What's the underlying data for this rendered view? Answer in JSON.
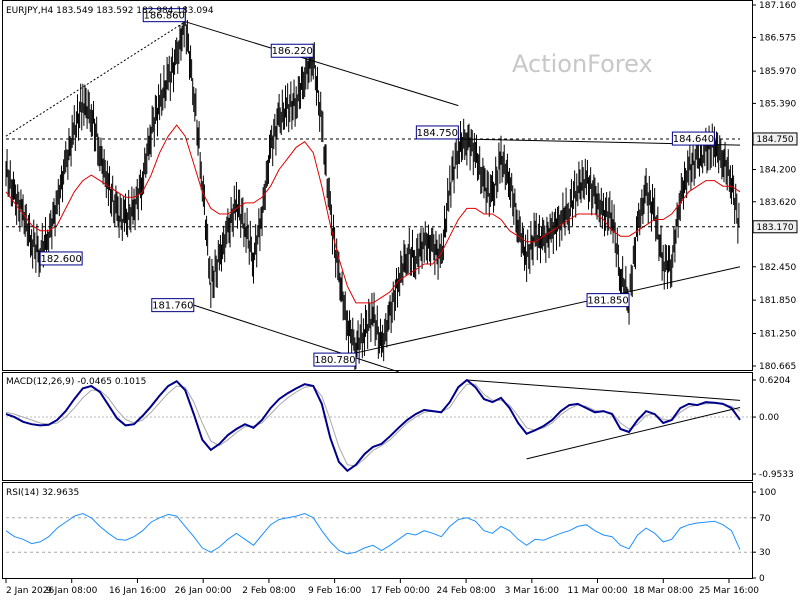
{
  "header": {
    "main": "EURJPY,H4  183.549 183.592 182.984 183.094",
    "macd": "MACD(12,26,9) -0.0465 0.1015",
    "rsi": "RSI(14) 32.9635"
  },
  "watermark": "ActionForex",
  "colors": {
    "price": "#000000",
    "ma": "#e00000",
    "macd_line": "#00008b",
    "macd_signal": "#a9a9a9",
    "rsi_line": "#1e90ff",
    "trend": "#000000",
    "label_border": "#00008b",
    "label_fill": "#ffffff",
    "axis_tag_fill": "#f0f0f0"
  },
  "chart_data": [
    {
      "type": "line",
      "title": "EURJPY,H4",
      "ylim": [
        180.665,
        187.16
      ],
      "y_ticks": [
        "187.160",
        "186.575",
        "185.970",
        "185.390",
        "184.750",
        "184.200",
        "183.620",
        "183.170",
        "182.450",
        "181.850",
        "181.250",
        "180.665"
      ],
      "x_ticks": [
        "2 Jan 2026",
        "9 Jan 08:00",
        "16 Jan 16:00",
        "26 Jan 00:00",
        "2 Feb 08:00",
        "9 Feb 16:00",
        "17 Feb 00:00",
        "24 Feb 08:00",
        "3 Mar 16:00",
        "11 Mar 00:00",
        "18 Mar 08:00",
        "25 Mar 16:00"
      ],
      "series": [
        {
          "values": [
            184.2,
            183.7,
            183.4,
            182.9,
            182.7,
            183.0,
            183.6,
            184.3,
            184.9,
            185.4,
            185.2,
            184.5,
            183.9,
            183.4,
            183.3,
            183.5,
            184.0,
            184.9,
            185.4,
            185.8,
            186.2,
            186.86,
            185.6,
            184.0,
            182.1,
            182.6,
            183.1,
            183.6,
            183.2,
            182.6,
            183.4,
            184.6,
            185.1,
            185.3,
            185.4,
            185.9,
            186.22,
            185.0,
            183.4,
            182.3,
            181.4,
            181.0,
            181.3,
            181.6,
            181.0,
            181.6,
            182.2,
            182.7,
            182.6,
            182.9,
            182.8,
            182.6,
            183.9,
            184.6,
            184.75,
            184.5,
            183.9,
            183.7,
            184.4,
            184.0,
            183.2,
            182.6,
            183.0,
            182.9,
            183.1,
            183.3,
            183.5,
            183.9,
            184.0,
            183.7,
            183.4,
            183.4,
            182.3,
            181.85,
            183.2,
            183.8,
            183.4,
            182.5,
            182.5,
            183.7,
            184.2,
            184.4,
            184.5,
            184.64,
            184.4,
            184.0,
            183.094
          ]
        },
        {
          "name": "MA",
          "values": [
            183.8,
            183.6,
            183.4,
            183.2,
            183.1,
            183.1,
            183.2,
            183.5,
            183.8,
            184.0,
            184.1,
            184.0,
            183.9,
            183.8,
            183.7,
            183.7,
            183.8,
            184.1,
            184.5,
            184.8,
            185.0,
            184.8,
            184.3,
            183.8,
            183.5,
            183.4,
            183.4,
            183.5,
            183.6,
            183.6,
            183.7,
            183.9,
            184.2,
            184.4,
            184.6,
            184.7,
            184.5,
            183.9,
            183.2,
            182.6,
            182.1,
            181.8,
            181.8,
            181.8,
            181.9,
            182.0,
            182.2,
            182.3,
            182.4,
            182.5,
            182.5,
            182.7,
            183.0,
            183.3,
            183.5,
            183.5,
            183.4,
            183.4,
            183.3,
            183.1,
            183.0,
            182.9,
            182.9,
            183.0,
            183.1,
            183.2,
            183.3,
            183.4,
            183.4,
            183.4,
            183.3,
            183.1,
            183.0,
            183.0,
            183.1,
            183.2,
            183.3,
            183.3,
            183.4,
            183.6,
            183.8,
            183.9,
            184.0,
            184.0,
            183.9,
            183.9,
            183.8
          ]
        }
      ],
      "trendlines": [
        {
          "points": [
            [
              0,
              184.75
            ],
            [
              86,
              184.75
            ]
          ],
          "dashed": true
        },
        {
          "points": [
            [
              0,
              183.17
            ],
            [
              86,
              183.17
            ]
          ],
          "dashed": true
        },
        {
          "points": [
            [
              21,
              186.86
            ],
            [
              53,
              185.35
            ]
          ]
        },
        {
          "points": [
            [
              22,
              181.76
            ],
            [
              46,
              180.56
            ]
          ]
        },
        {
          "points": [
            [
              41,
              180.9
            ],
            [
              86,
              182.45
            ]
          ]
        },
        {
          "points": [
            [
              53,
              184.75
            ],
            [
              86,
              184.64
            ]
          ]
        },
        {
          "points": [
            [
              0,
              184.8
            ],
            [
              21,
              186.86
            ]
          ],
          "dotted": true
        }
      ],
      "annotations": [
        {
          "text": "186.860",
          "x": 21,
          "y": 186.86
        },
        {
          "text": "186.220",
          "x": 36,
          "y": 186.22
        },
        {
          "text": "184.750",
          "x": 53,
          "y": 184.75
        },
        {
          "text": "184.640",
          "x": 83,
          "y": 184.64
        },
        {
          "text": "182.600",
          "x": 4,
          "y": 182.6
        },
        {
          "text": "181.760",
          "x": 22,
          "y": 181.76
        },
        {
          "text": "181.850",
          "x": 73,
          "y": 181.85
        },
        {
          "text": "180.780",
          "x": 41,
          "y": 180.78
        }
      ],
      "axis_tags": [
        {
          "text": "184.750",
          "y": 184.75
        },
        {
          "text": "183.170",
          "y": 183.17
        }
      ]
    },
    {
      "type": "line",
      "title": "MACD(12,26,9)",
      "ylim": [
        -0.9533,
        0.6204
      ],
      "y_ticks": [
        "0.6204",
        "0.00",
        "-0.9533"
      ],
      "series": [
        {
          "values": [
            0.05,
            0.0,
            -0.08,
            -0.12,
            -0.14,
            -0.13,
            -0.05,
            0.1,
            0.3,
            0.48,
            0.52,
            0.42,
            0.2,
            -0.02,
            -0.14,
            -0.12,
            0.02,
            0.18,
            0.36,
            0.52,
            0.6,
            0.45,
            0.05,
            -0.38,
            -0.55,
            -0.45,
            -0.3,
            -0.2,
            -0.12,
            -0.18,
            -0.05,
            0.15,
            0.3,
            0.4,
            0.48,
            0.55,
            0.52,
            0.22,
            -0.35,
            -0.75,
            -0.9,
            -0.8,
            -0.62,
            -0.5,
            -0.45,
            -0.32,
            -0.18,
            -0.05,
            0.05,
            0.12,
            0.1,
            0.08,
            0.25,
            0.5,
            0.62,
            0.5,
            0.3,
            0.25,
            0.32,
            0.15,
            -0.1,
            -0.28,
            -0.22,
            -0.15,
            -0.05,
            0.1,
            0.2,
            0.22,
            0.15,
            0.08,
            0.1,
            0.05,
            -0.2,
            -0.25,
            -0.05,
            0.1,
            0.05,
            -0.1,
            -0.05,
            0.15,
            0.22,
            0.2,
            0.25,
            0.24,
            0.22,
            0.15,
            -0.0465
          ]
        },
        {
          "name": "Signal",
          "values": [
            0.08,
            0.05,
            0.0,
            -0.05,
            -0.1,
            -0.12,
            -0.1,
            0.0,
            0.15,
            0.32,
            0.45,
            0.45,
            0.32,
            0.12,
            -0.04,
            -0.1,
            -0.05,
            0.08,
            0.24,
            0.4,
            0.52,
            0.5,
            0.25,
            -0.1,
            -0.4,
            -0.48,
            -0.38,
            -0.26,
            -0.16,
            -0.15,
            -0.1,
            0.05,
            0.2,
            0.32,
            0.42,
            0.5,
            0.52,
            0.35,
            -0.05,
            -0.5,
            -0.8,
            -0.82,
            -0.7,
            -0.56,
            -0.48,
            -0.38,
            -0.24,
            -0.1,
            0.0,
            0.08,
            0.1,
            0.09,
            0.16,
            0.38,
            0.55,
            0.55,
            0.38,
            0.28,
            0.28,
            0.2,
            0.02,
            -0.18,
            -0.22,
            -0.18,
            -0.1,
            0.04,
            0.14,
            0.2,
            0.18,
            0.11,
            0.09,
            0.07,
            -0.1,
            -0.2,
            -0.12,
            0.03,
            0.05,
            -0.04,
            -0.06,
            0.08,
            0.17,
            0.2,
            0.22,
            0.23,
            0.22,
            0.18,
            0.1015
          ]
        }
      ],
      "trendlines": [
        {
          "points": [
            [
              54,
              0.62
            ],
            [
              86,
              0.28
            ]
          ]
        },
        {
          "points": [
            [
              61,
              -0.7
            ],
            [
              86,
              0.16
            ]
          ]
        }
      ]
    },
    {
      "type": "line",
      "title": "RSI(14)",
      "ylim": [
        0,
        100
      ],
      "y_ticks": [
        "100",
        "70",
        "30",
        "0"
      ],
      "series": [
        {
          "values": [
            55,
            48,
            45,
            40,
            42,
            48,
            58,
            65,
            72,
            75,
            70,
            60,
            52,
            45,
            44,
            48,
            55,
            65,
            70,
            74,
            72,
            60,
            48,
            35,
            30,
            36,
            45,
            52,
            45,
            38,
            50,
            62,
            68,
            70,
            72,
            75,
            70,
            55,
            42,
            32,
            28,
            30,
            35,
            38,
            32,
            38,
            45,
            52,
            50,
            55,
            52,
            48,
            60,
            68,
            70,
            66,
            55,
            52,
            60,
            55,
            45,
            38,
            45,
            44,
            48,
            52,
            55,
            60,
            62,
            55,
            50,
            48,
            38,
            34,
            50,
            58,
            52,
            42,
            45,
            58,
            62,
            64,
            65,
            66,
            62,
            55,
            32.9635
          ]
        }
      ],
      "levels": [
        70,
        30
      ]
    }
  ]
}
